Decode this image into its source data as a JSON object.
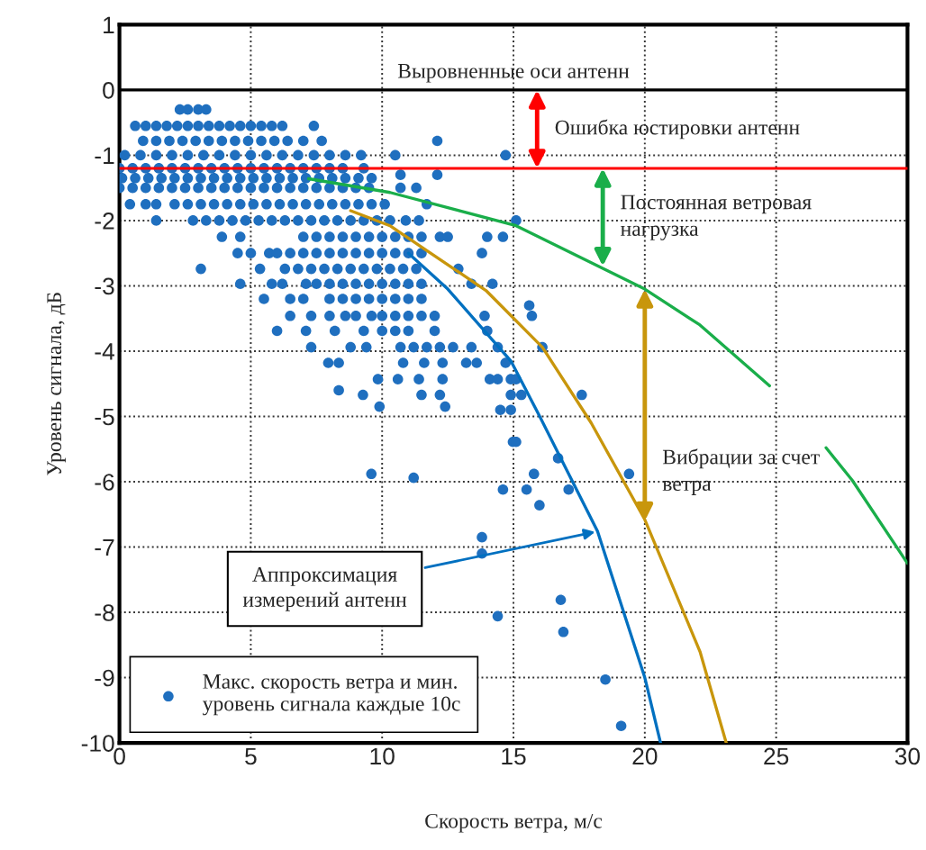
{
  "chart_data": {
    "type": "scatter",
    "xlabel": "Скорость ветра, м/с",
    "ylabel": "Уровень сигнала, дБ",
    "xlim": [
      0,
      30
    ],
    "xticks": [
      0,
      5,
      10,
      15,
      20,
      25,
      30
    ],
    "ylim": [
      -10,
      1
    ],
    "yticks": [
      1,
      0,
      -1,
      -2,
      -3,
      -4,
      -5,
      -6,
      -7,
      -8,
      -9,
      -10
    ],
    "grid": true,
    "legend": "bottom left",
    "ref_lines": [
      {
        "axis": "y",
        "value": 0,
        "label": "Выровненные оси антенн",
        "color": "#000000"
      },
      {
        "axis": "y",
        "value": -1.2,
        "color": "#ff0000"
      }
    ],
    "annotations": [
      {
        "text": "Ошибка юстировки антенн",
        "x": 15.9,
        "y": -1.2
      },
      {
        "text": "Постоянная ветровая\nнагрузка",
        "x": 18.4,
        "y": -2.7
      },
      {
        "text": "Вибрации за счет\nветра",
        "x": 20,
        "y": -6.6
      },
      {
        "text": "Аппроксимация\nизмерений антенн",
        "x": 18.2,
        "y": -6.76
      }
    ],
    "series": [
      {
        "name": "Макс. скорость ветра и мин.\nуровень сигнала каждые 10с",
        "marker": "circle",
        "color": "#1f6fbf",
        "x": [
          2.3,
          2.6,
          3.0,
          3.3,
          0.6,
          1.0,
          1.4,
          1.8,
          2.2,
          2.6,
          3.0,
          3.4,
          3.8,
          4.2,
          4.6,
          5.0,
          5.4,
          5.8,
          6.2,
          7.4,
          0.9,
          1.4,
          1.9,
          2.4,
          2.9,
          3.4,
          3.9,
          4.4,
          4.9,
          5.4,
          5.9,
          6.4,
          7.0,
          7.7,
          12.1,
          0.2,
          0.8,
          1.4,
          2.0,
          2.6,
          3.2,
          3.8,
          4.4,
          5.0,
          5.6,
          6.2,
          6.8,
          7.4,
          8.0,
          8.6,
          9.2,
          10.5,
          14.7,
          0.0,
          0.5,
          1.0,
          1.5,
          2.0,
          2.5,
          3.0,
          3.5,
          4.0,
          4.5,
          5.0,
          5.5,
          6.0,
          6.5,
          7.0,
          7.5,
          8.0,
          8.5,
          9.3,
          0.1,
          0.6,
          1.1,
          1.6,
          2.1,
          2.6,
          3.1,
          3.6,
          4.1,
          4.6,
          5.1,
          5.6,
          6.1,
          6.6,
          7.1,
          7.6,
          8.1,
          8.6,
          9.1,
          9.6,
          10.7,
          12.1,
          0.0,
          0.5,
          1.0,
          1.5,
          2.0,
          2.5,
          3.0,
          3.5,
          4.0,
          4.5,
          5.0,
          5.5,
          6.0,
          6.5,
          7.0,
          7.5,
          8.0,
          8.5,
          9.0,
          9.5,
          10.7,
          11.3,
          0.4,
          1.0,
          1.4,
          2.1,
          2.6,
          3.1,
          3.6,
          4.1,
          4.6,
          5.1,
          5.6,
          6.1,
          6.6,
          7.1,
          7.6,
          8.1,
          8.6,
          9.1,
          9.6,
          10.1,
          11.7,
          1.4,
          2.8,
          3.3,
          3.8,
          4.3,
          4.8,
          5.3,
          5.8,
          6.3,
          6.8,
          7.3,
          7.8,
          8.3,
          8.8,
          9.3,
          9.8,
          10.3,
          10.9,
          11.4,
          15.1,
          3.9,
          4.6,
          7.0,
          7.5,
          8.0,
          8.5,
          9.0,
          9.5,
          10.0,
          10.5,
          11.0,
          11.5,
          12.2,
          12.5,
          14.0,
          14.6,
          4.5,
          5.0,
          5.7,
          6.0,
          6.5,
          7.0,
          7.5,
          8.0,
          8.5,
          9.0,
          9.5,
          10.0,
          10.5,
          11.0,
          11.5,
          13.8,
          3.1,
          5.35,
          6.3,
          6.8,
          7.3,
          7.8,
          8.3,
          8.8,
          9.3,
          9.8,
          10.3,
          10.8,
          11.3,
          12.9,
          4.6,
          5.8,
          6.2,
          7.1,
          7.5,
          8.0,
          8.5,
          9.0,
          9.5,
          10.0,
          10.5,
          11.0,
          11.5,
          13.4,
          14.2,
          5.5,
          6.5,
          7.0,
          8.0,
          8.5,
          9.0,
          9.5,
          10.0,
          10.5,
          11.0,
          11.5,
          15.6,
          6.5,
          7.3,
          8.0,
          8.6,
          9.0,
          9.6,
          10.0,
          10.5,
          11.0,
          11.5,
          12.0,
          13.9,
          15.7,
          6.0,
          7.1,
          8.2,
          9.3,
          10.0,
          10.5,
          11.0,
          12.0,
          14.0,
          7.3,
          8.8,
          9.4,
          10.7,
          11.2,
          11.7,
          12.2,
          12.7,
          13.4,
          14.4,
          16.1,
          7.95,
          8.35,
          10.8,
          11.6,
          12.3,
          13.2,
          13.6,
          14.7,
          9.84,
          10.6,
          11.4,
          12.3,
          14.1,
          14.4,
          14.9,
          15.1,
          8.35,
          9.27,
          11.5,
          12.2,
          14.9,
          15.3,
          17.6,
          9.9,
          12.4,
          14.5,
          14.9,
          14.98,
          15.1,
          16.7,
          9.59,
          11.2,
          14.6,
          15.5,
          15.78,
          15.99,
          17.1,
          19.4,
          13.8,
          13.8,
          16.8,
          14.4,
          16.9,
          18.5,
          19.1
        ],
        "values": [
          -0.3,
          -0.3,
          -0.3,
          -0.3,
          -0.55,
          -0.55,
          -0.55,
          -0.55,
          -0.55,
          -0.55,
          -0.55,
          -0.55,
          -0.55,
          -0.55,
          -0.55,
          -0.55,
          -0.55,
          -0.55,
          -0.55,
          -0.55,
          -0.78,
          -0.78,
          -0.78,
          -0.78,
          -0.78,
          -0.78,
          -0.78,
          -0.78,
          -0.78,
          -0.78,
          -0.78,
          -0.78,
          -0.78,
          -0.78,
          -0.78,
          -1.0,
          -1.0,
          -1.0,
          -1.0,
          -1.0,
          -1.0,
          -1.0,
          -1.0,
          -1.0,
          -1.0,
          -1.0,
          -1.0,
          -1.0,
          -1.0,
          -1.0,
          -1.0,
          -1.0,
          -1.0,
          -1.2,
          -1.2,
          -1.2,
          -1.2,
          -1.2,
          -1.2,
          -1.2,
          -1.2,
          -1.2,
          -1.2,
          -1.2,
          -1.2,
          -1.2,
          -1.2,
          -1.2,
          -1.2,
          -1.2,
          -1.2,
          -1.2,
          -1.35,
          -1.35,
          -1.35,
          -1.35,
          -1.35,
          -1.35,
          -1.35,
          -1.35,
          -1.35,
          -1.35,
          -1.35,
          -1.35,
          -1.35,
          -1.35,
          -1.35,
          -1.35,
          -1.35,
          -1.35,
          -1.35,
          -1.35,
          -1.3,
          -1.3,
          -1.5,
          -1.5,
          -1.5,
          -1.5,
          -1.5,
          -1.5,
          -1.5,
          -1.5,
          -1.5,
          -1.5,
          -1.5,
          -1.5,
          -1.5,
          -1.5,
          -1.5,
          -1.5,
          -1.5,
          -1.5,
          -1.5,
          -1.5,
          -1.5,
          -1.5,
          -1.75,
          -1.75,
          -1.75,
          -1.75,
          -1.75,
          -1.75,
          -1.75,
          -1.75,
          -1.75,
          -1.75,
          -1.75,
          -1.75,
          -1.75,
          -1.75,
          -1.75,
          -1.75,
          -1.75,
          -1.75,
          -1.75,
          -1.75,
          -1.75,
          -2.0,
          -2.0,
          -2.0,
          -2.0,
          -2.0,
          -2.0,
          -2.0,
          -2.0,
          -2.0,
          -2.0,
          -2.0,
          -2.0,
          -2.0,
          -2.0,
          -2.0,
          -2.0,
          -2.0,
          -2.0,
          -2.0,
          -2.0,
          -2.25,
          -2.25,
          -2.25,
          -2.25,
          -2.25,
          -2.25,
          -2.25,
          -2.25,
          -2.25,
          -2.25,
          -2.25,
          -2.25,
          -2.25,
          -2.25,
          -2.25,
          -2.25,
          -2.5,
          -2.5,
          -2.5,
          -2.5,
          -2.5,
          -2.5,
          -2.5,
          -2.5,
          -2.5,
          -2.5,
          -2.5,
          -2.5,
          -2.5,
          -2.5,
          -2.5,
          -2.5,
          -2.74,
          -2.74,
          -2.74,
          -2.74,
          -2.74,
          -2.74,
          -2.74,
          -2.74,
          -2.74,
          -2.74,
          -2.74,
          -2.74,
          -2.74,
          -2.74,
          -2.97,
          -2.97,
          -2.97,
          -2.97,
          -2.97,
          -2.97,
          -2.97,
          -2.97,
          -2.97,
          -2.97,
          -2.97,
          -2.97,
          -2.97,
          -2.97,
          -2.97,
          -3.2,
          -3.2,
          -3.2,
          -3.2,
          -3.2,
          -3.2,
          -3.2,
          -3.2,
          -3.2,
          -3.2,
          -3.2,
          -3.3,
          -3.46,
          -3.46,
          -3.46,
          -3.46,
          -3.46,
          -3.46,
          -3.46,
          -3.46,
          -3.46,
          -3.46,
          -3.46,
          -3.46,
          -3.46,
          -3.69,
          -3.69,
          -3.69,
          -3.69,
          -3.69,
          -3.69,
          -3.69,
          -3.69,
          -3.69,
          -3.94,
          -3.94,
          -3.94,
          -3.94,
          -3.94,
          -3.94,
          -3.94,
          -3.94,
          -3.94,
          -3.94,
          -3.94,
          -4.18,
          -4.18,
          -4.18,
          -4.18,
          -4.18,
          -4.18,
          -4.18,
          -4.18,
          -4.43,
          -4.43,
          -4.43,
          -4.43,
          -4.43,
          -4.43,
          -4.43,
          -4.43,
          -4.6,
          -4.67,
          -4.67,
          -4.67,
          -4.67,
          -4.67,
          -4.67,
          -4.85,
          -4.85,
          -4.9,
          -4.9,
          -5.39,
          -5.39,
          -5.64,
          -5.88,
          -5.94,
          -6.12,
          -6.12,
          -5.88,
          -6.36,
          -6.12,
          -5.88,
          -6.85,
          -7.1,
          -7.81,
          -8.06,
          -8.3,
          -9.03,
          -9.74
        ]
      },
      {
        "type": "line",
        "marker": "none",
        "color": "#0070c0",
        "x": [
          11,
          12.5,
          14.9,
          16,
          18.2,
          20,
          20.6
        ],
        "values": [
          -2.5,
          -3.05,
          -4.15,
          -5.0,
          -6.76,
          -9.0,
          -10.0
        ]
      },
      {
        "type": "line",
        "marker": "none",
        "color": "#c8960c",
        "x": [
          8.8,
          10.3,
          13.95,
          16.1,
          17.96,
          20,
          22.1,
          23.1
        ],
        "values": [
          -1.85,
          -2.08,
          -3.07,
          -3.94,
          -5.1,
          -6.58,
          -8.6,
          -10.0
        ]
      },
      {
        "type": "line",
        "marker": "none",
        "color": "#1aae4a",
        "x": [
          7.2,
          10.3,
          15.1,
          20,
          22.1,
          24.75,
          25.8,
          26.9,
          27.9,
          30
        ],
        "values": [
          -1.36,
          -1.57,
          -2.08,
          -3.05,
          -3.6,
          -4.53,
          null,
          -5.48,
          -5.98,
          -7.25
        ]
      }
    ]
  }
}
